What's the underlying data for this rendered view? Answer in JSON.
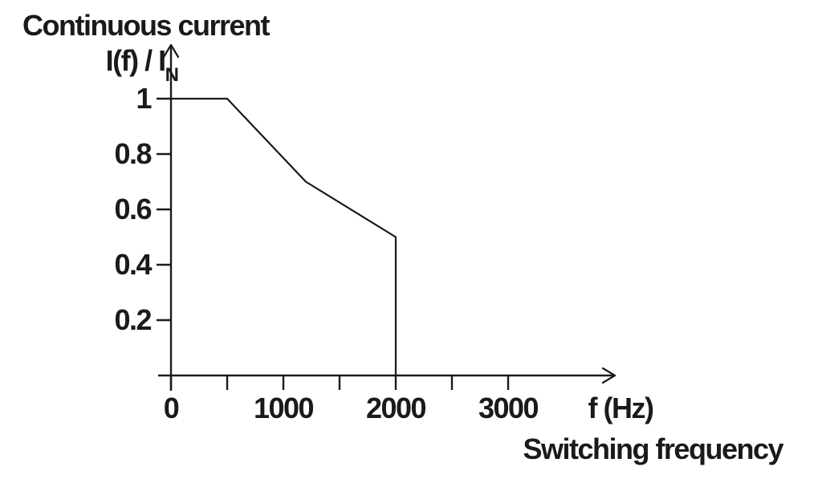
{
  "title": "Continuous current",
  "colors": {
    "line": "#1a1a1a",
    "text": "#1a1a1a",
    "background": "#ffffff"
  },
  "y_axis": {
    "label_main": "I(f) / I",
    "label_sub": "N",
    "ticks": [
      1,
      0.8,
      0.6,
      0.4,
      0.2
    ],
    "tick_labels": [
      "1",
      "0.8",
      "0.6",
      "0.4",
      "0.2"
    ]
  },
  "x_axis": {
    "unit_label": "f (Hz)",
    "caption": "Switching frequency",
    "tick_values": [
      0,
      500,
      1000,
      1500,
      2000,
      2500,
      3000
    ],
    "labeled_ticks": [
      0,
      1000,
      2000,
      3000
    ],
    "tick_label_texts": [
      "0",
      "1000",
      "2000",
      "3000"
    ]
  },
  "chart_data": {
    "type": "line",
    "title": "Continuous current",
    "ylabel": "I(f) / I_N",
    "xlabel": "f (Hz)",
    "xcaption": "Switching frequency",
    "x": [
      0,
      500,
      1200,
      2000,
      2000
    ],
    "y": [
      1.0,
      1.0,
      0.7,
      0.5,
      0.0
    ],
    "xlim": [
      0,
      3900
    ],
    "ylim": [
      0,
      1.15
    ],
    "x_ticks": [
      0,
      500,
      1000,
      1500,
      2000,
      2500,
      3000
    ],
    "y_ticks": [
      0.2,
      0.4,
      0.6,
      0.8,
      1.0
    ],
    "grid": false,
    "legend": false,
    "line_color": "#1a1a1a",
    "description_points": [
      {
        "f_hz": 0,
        "ratio": 1.0
      },
      {
        "f_hz": 500,
        "ratio": 1.0
      },
      {
        "f_hz": 1200,
        "ratio": 0.7
      },
      {
        "f_hz": 2000,
        "ratio": 0.5
      },
      {
        "f_hz": 2000,
        "ratio": 0.0
      }
    ]
  }
}
